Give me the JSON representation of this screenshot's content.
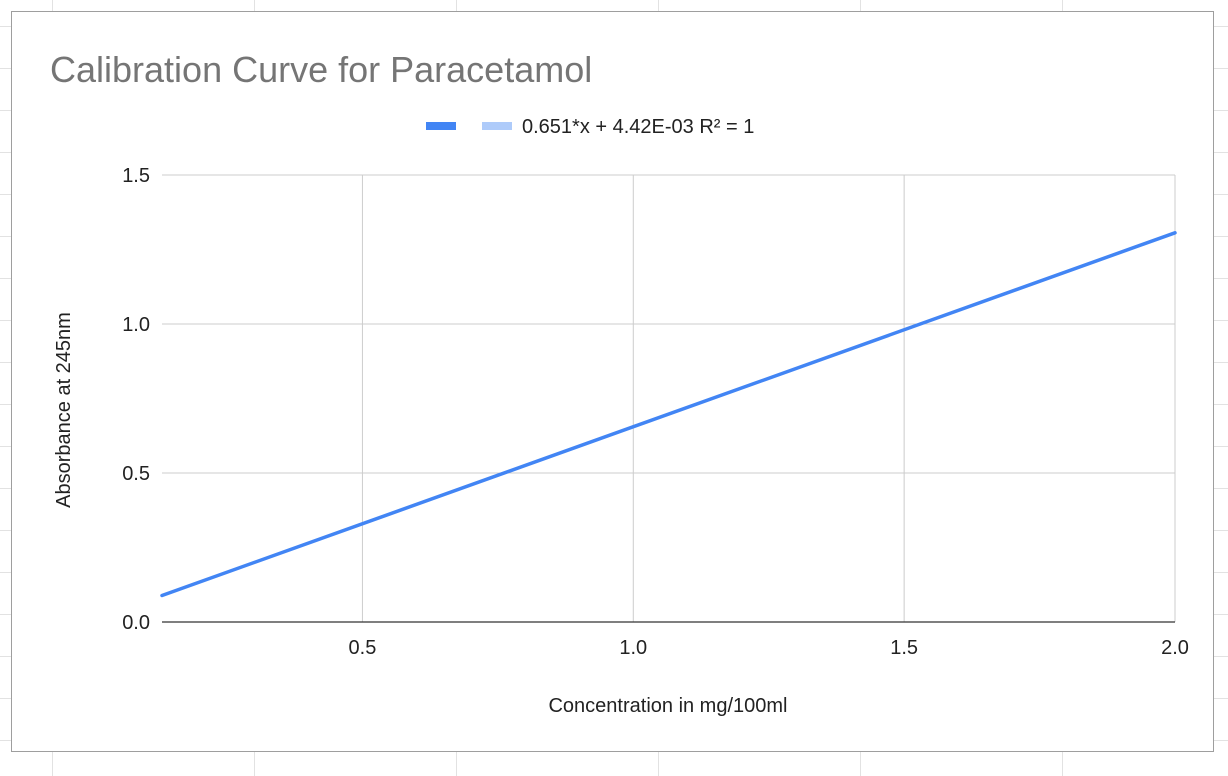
{
  "chart_data": {
    "type": "line",
    "title": "Calibration Curve for Paracetamol",
    "xlabel": "Concentration in mg/100ml",
    "ylabel": "Absorbance at 245nm",
    "xlim": [
      0.13,
      2.0
    ],
    "ylim": [
      0.0,
      1.5
    ],
    "x_ticks": [
      {
        "value": 0.5,
        "label": "0.5"
      },
      {
        "value": 1.0,
        "label": "1.0"
      },
      {
        "value": 1.5,
        "label": "1.5"
      },
      {
        "value": 2.0,
        "label": "2.0"
      }
    ],
    "y_ticks": [
      {
        "value": 0.0,
        "label": "0.0"
      },
      {
        "value": 0.5,
        "label": "0.5"
      },
      {
        "value": 1.0,
        "label": "1.0"
      },
      {
        "value": 1.5,
        "label": "1.5"
      }
    ],
    "grid": true,
    "legend_position": "top",
    "series": [
      {
        "name": "",
        "color": "#4285f4",
        "x": [
          0.13,
          2.0
        ],
        "y": [
          0.089,
          1.306
        ]
      }
    ],
    "trendline": {
      "name": "0.651*x + 4.42E-03 R² = 1",
      "color": "#aecbfa",
      "slope": 0.651,
      "intercept": 0.00442
    }
  }
}
